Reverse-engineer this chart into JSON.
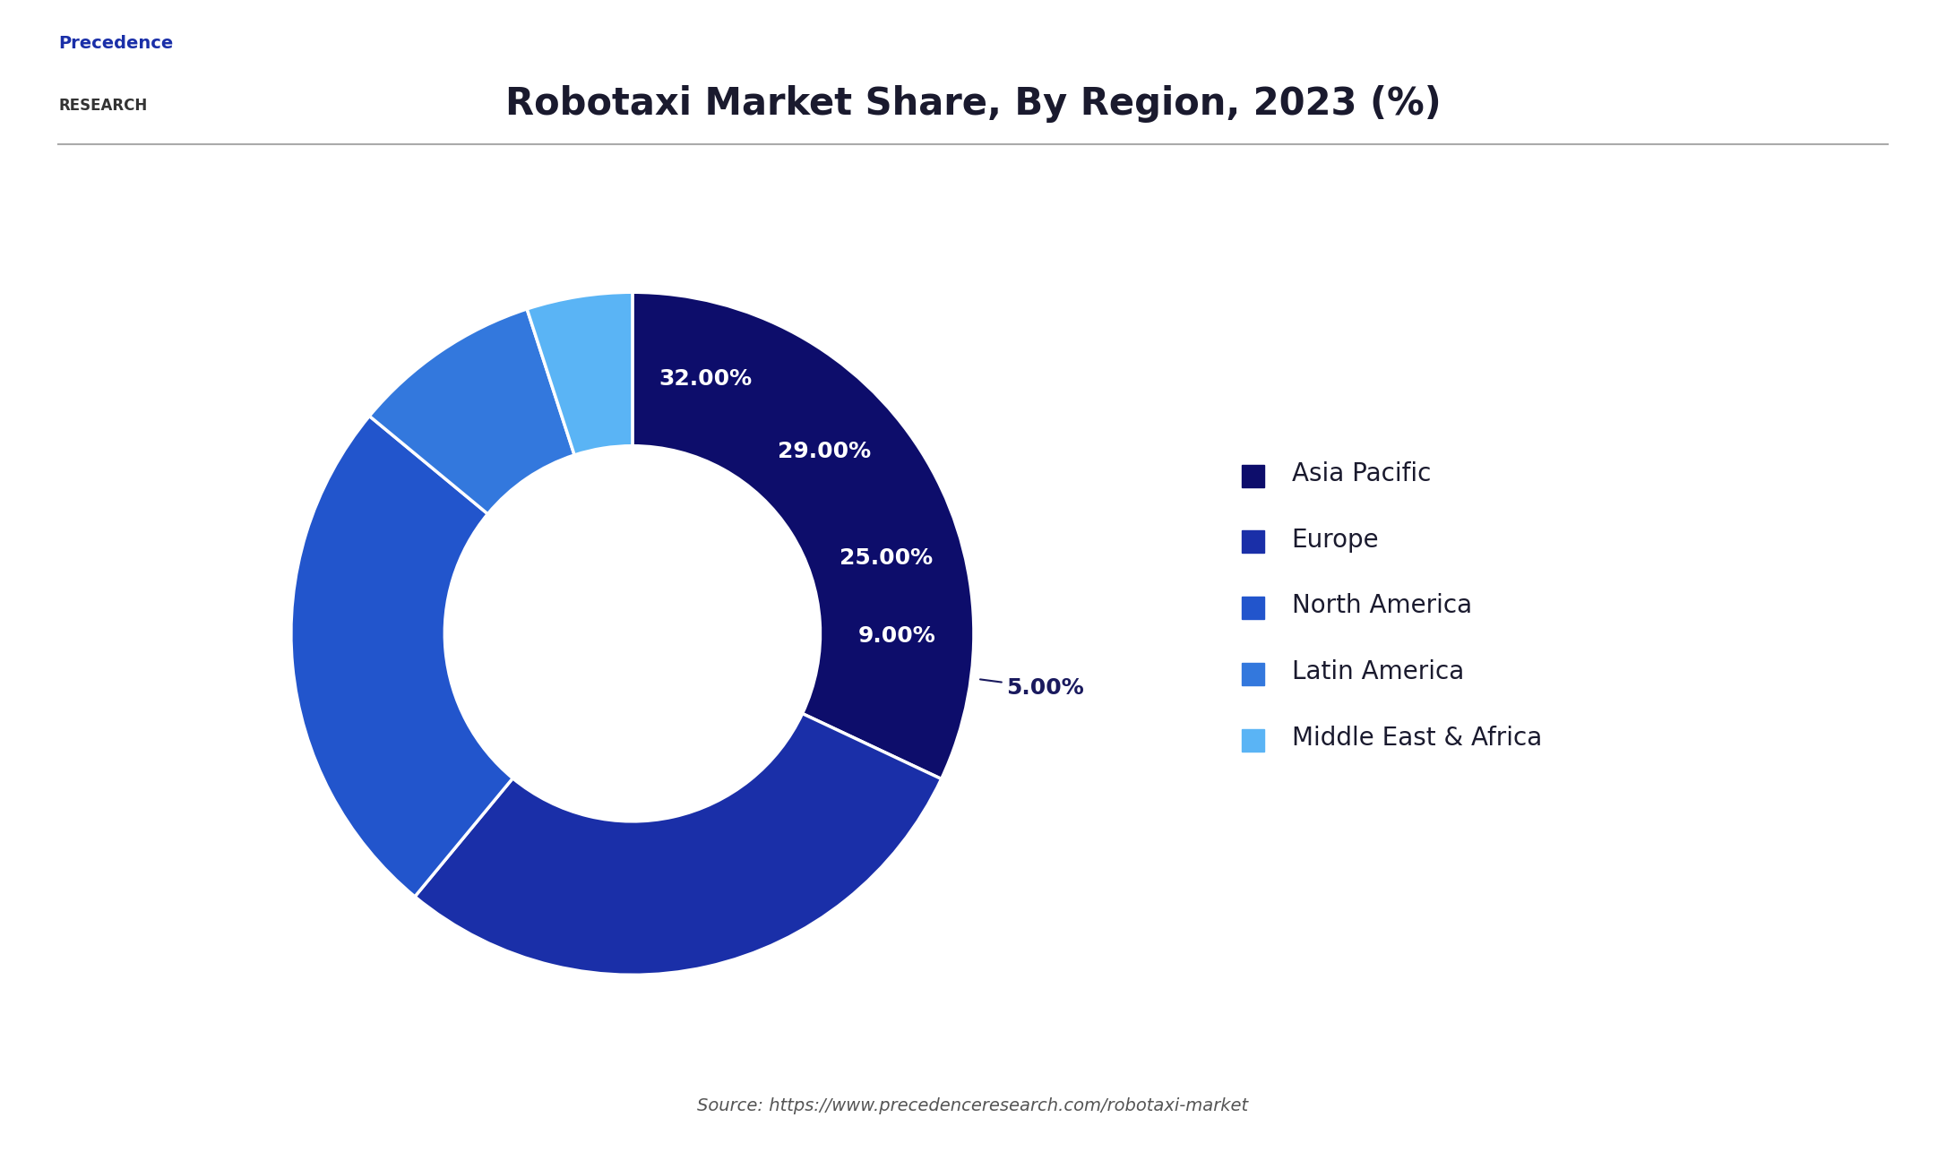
{
  "title": "Robotaxi Market Share, By Region, 2023 (%)",
  "segments": [
    {
      "label": "Asia Pacific",
      "value": 32,
      "color": "#0d0d6b",
      "text_color": "#ffffff"
    },
    {
      "label": "Europe",
      "value": 29,
      "color": "#1a2fa8",
      "text_color": "#ffffff"
    },
    {
      "label": "North America",
      "value": 25,
      "color": "#2255cc",
      "text_color": "#ffffff"
    },
    {
      "label": "Latin America",
      "value": 9,
      "color": "#3378dd",
      "text_color": "#ffffff"
    },
    {
      "label": "Middle East & Africa",
      "value": 5,
      "color": "#5ab4f5",
      "text_color": "#1a1a5e"
    }
  ],
  "source_text": "Source: https://www.precedenceresearch.com/robotaxi-market",
  "background_color": "#ffffff",
  "title_fontsize": 30,
  "legend_fontsize": 20,
  "label_fontsize": 18,
  "source_fontsize": 14,
  "wedge_edge_color": "#ffffff",
  "start_angle": 90,
  "donut_width": 0.45
}
